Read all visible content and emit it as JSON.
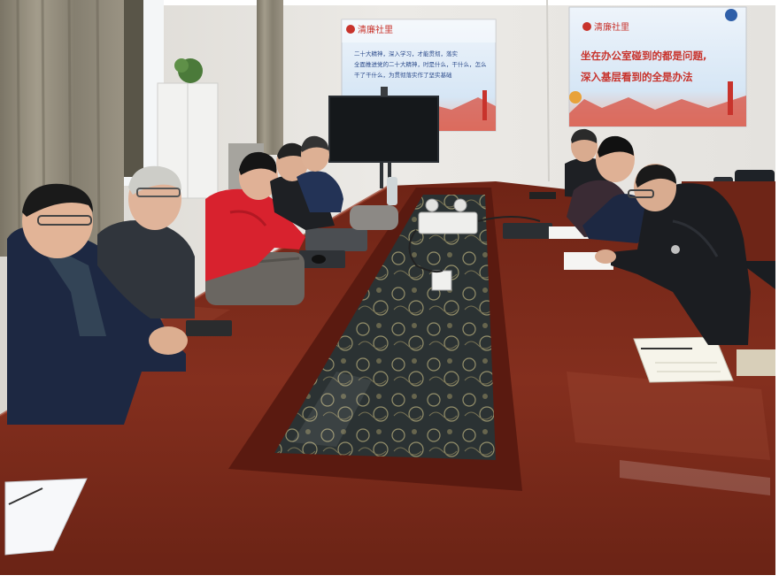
{
  "photo": {
    "poster_left": {
      "header": "清廉社里",
      "lines": [
        "二十大精神，深入学习，才能贯彻，落实",
        "全面推进党的二十大精神，时是什么，干什么，怎么",
        "干了干什么，为贯彻落实作了坚实基础"
      ]
    },
    "poster_right": {
      "header": "清廉社里",
      "slogan_line1": "坐在办公室碰到的都是问题,",
      "slogan_line2": "深入基层看到的全是办法"
    },
    "colors": {
      "wall": "#e9e7e3",
      "table": "#7a2a1c",
      "table_highlight": "#9a3d2a",
      "table_edge": "#5c1d12",
      "glass_panel": "#222a2c",
      "poster_bg": "#dbe9f6",
      "poster_red": "#c8332c",
      "red_jacket": "#d8222e",
      "navy_jacket": "#1d2842",
      "dark_jacket": "#1e2024",
      "curtain": "#8c8575"
    }
  }
}
